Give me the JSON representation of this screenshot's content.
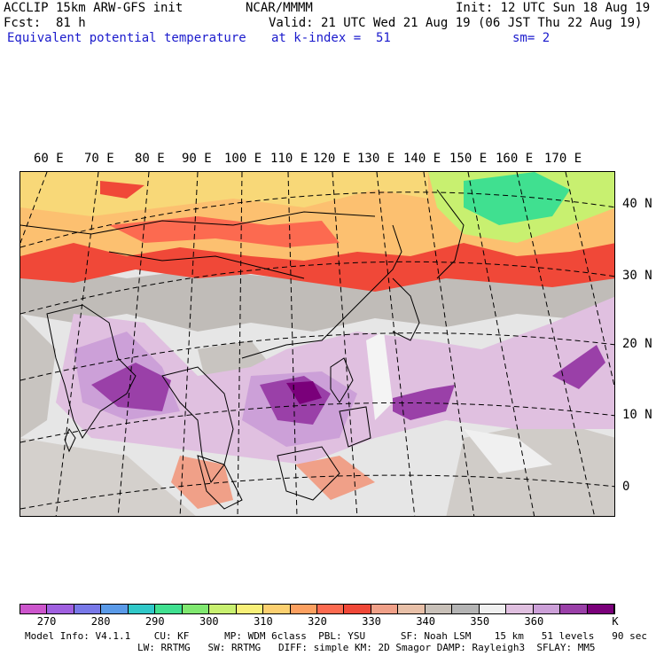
{
  "header": {
    "model_line": "ACCLIP 15km ARW-GFS init",
    "center_line": "NCAR/MMMM",
    "init_line": "Init: 12 UTC Sun 18 Aug 19",
    "fcst_line": "Fcst:  81 h",
    "valid_line": "Valid: 21 UTC Wed 21 Aug 19 (06 JST Thu 22 Aug 19)",
    "field_name": "Equivalent potential temperature",
    "level_line": "at k-index =  51",
    "smooth_line": "sm= 2"
  },
  "map": {
    "lon_labels": [
      "60 E",
      "70 E",
      "80 E",
      "90 E",
      "100 E",
      "110 E",
      "120 E",
      "130 E",
      "140 E",
      "150 E",
      "160 E",
      "170 E"
    ],
    "lat_labels": [
      "40 N",
      "30 N",
      "20 N",
      "10 N",
      "0"
    ]
  },
  "colorbar": {
    "unit": "K",
    "labels": [
      "270",
      "280",
      "290",
      "300",
      "310",
      "320",
      "330",
      "340",
      "350",
      "360"
    ],
    "colors": [
      "#cc55cc",
      "#a060e0",
      "#7878e8",
      "#5a9ae8",
      "#30c8c8",
      "#40e090",
      "#80e870",
      "#c8f070",
      "#f8f078",
      "#fcd070",
      "#fca060",
      "#fc6a50",
      "#f04838",
      "#f0a088",
      "#e8c0a8",
      "#c8c0b8",
      "#b4b4b4",
      "#f0f0f0",
      "#e0c0e0",
      "#cca0d8",
      "#9a40a8",
      "#7a007a"
    ]
  },
  "footer": {
    "line1": "Model Info: V4.1.1    CU: KF      MP: WDM 6class  PBL: YSU      SF: Noah LSM    15 km   51 levels   90 sec",
    "line2": "LW: RRTMG   SW: RRTMG   DIFF: simple KM: 2D Smagor DAMP: Rayleigh3  SFLAY: MM5"
  }
}
